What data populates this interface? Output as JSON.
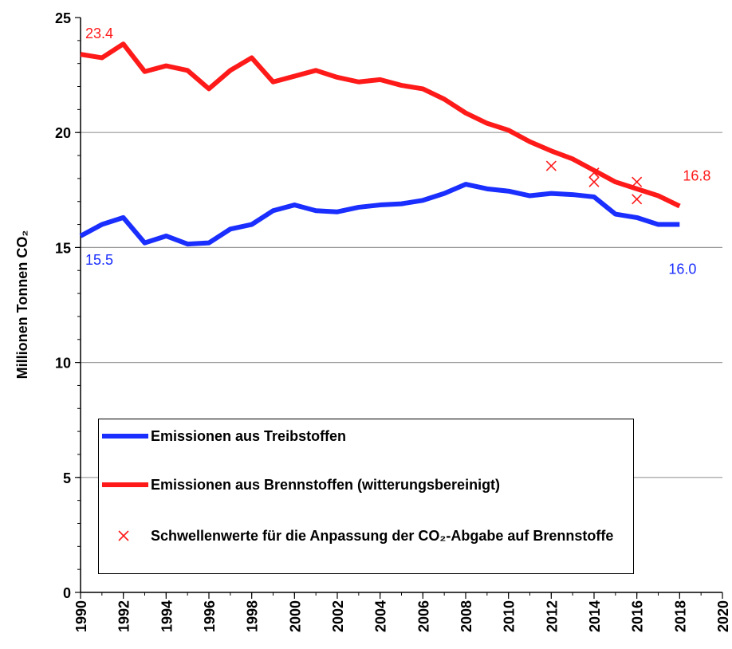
{
  "chart_data": {
    "type": "line",
    "y_label": "Millionen Tonnen CO₂",
    "x": [
      1990,
      1991,
      1992,
      1993,
      1994,
      1995,
      1996,
      1997,
      1998,
      1999,
      2000,
      2001,
      2002,
      2003,
      2004,
      2005,
      2006,
      2007,
      2008,
      2009,
      2010,
      2011,
      2012,
      2013,
      2014,
      2015,
      2016,
      2017,
      2018
    ],
    "series": [
      {
        "name": "Emissionen aus Treibstoffen",
        "color": "#1a2eff",
        "values": [
          15.5,
          16.0,
          16.3,
          15.2,
          15.5,
          15.15,
          15.2,
          15.8,
          16.0,
          16.6,
          16.85,
          16.6,
          16.55,
          16.75,
          16.85,
          16.9,
          17.05,
          17.35,
          17.75,
          17.55,
          17.45,
          17.25,
          17.35,
          17.3,
          17.2,
          16.45,
          16.3,
          16.0,
          16.0
        ],
        "value_labels": [
          "15.5",
          null,
          null,
          null,
          null,
          null,
          null,
          null,
          null,
          null,
          null,
          null,
          null,
          null,
          null,
          null,
          null,
          null,
          null,
          null,
          null,
          null,
          null,
          null,
          null,
          null,
          null,
          null,
          "16.0"
        ]
      },
      {
        "name": "Emissionen aus Brennstoffen (witterungsbereinigt)",
        "color": "#ff1a1a",
        "values": [
          23.4,
          23.25,
          23.85,
          22.65,
          22.9,
          22.7,
          21.9,
          22.7,
          23.25,
          22.2,
          22.45,
          22.7,
          22.4,
          22.2,
          22.3,
          22.05,
          21.9,
          21.45,
          20.85,
          20.4,
          20.1,
          19.6,
          19.2,
          18.85,
          18.35,
          17.85,
          17.55,
          17.25,
          16.8
        ],
        "value_labels": [
          "23.4",
          null,
          null,
          null,
          null,
          null,
          null,
          null,
          null,
          null,
          null,
          null,
          null,
          null,
          null,
          null,
          null,
          null,
          null,
          null,
          null,
          null,
          null,
          null,
          null,
          null,
          null,
          null,
          "16.8"
        ]
      },
      {
        "name": "Schwellenwerte für die Anpassung der CO₂-Abgabe auf Brennstoffe",
        "color": "#ff1a1a",
        "marker": "x",
        "x": [
          2012,
          2014,
          2014,
          2016,
          2016
        ],
        "values": [
          18.55,
          18.25,
          17.85,
          17.85,
          17.1
        ]
      }
    ],
    "xlim": [
      1990,
      2020
    ],
    "xticks": [
      1990,
      1992,
      1994,
      1996,
      1998,
      2000,
      2002,
      2004,
      2006,
      2008,
      2010,
      2012,
      2014,
      2016,
      2018,
      2020
    ],
    "ylim": [
      0,
      25
    ],
    "yticks": [
      0,
      5,
      10,
      15,
      20,
      25
    ],
    "grid": true
  }
}
